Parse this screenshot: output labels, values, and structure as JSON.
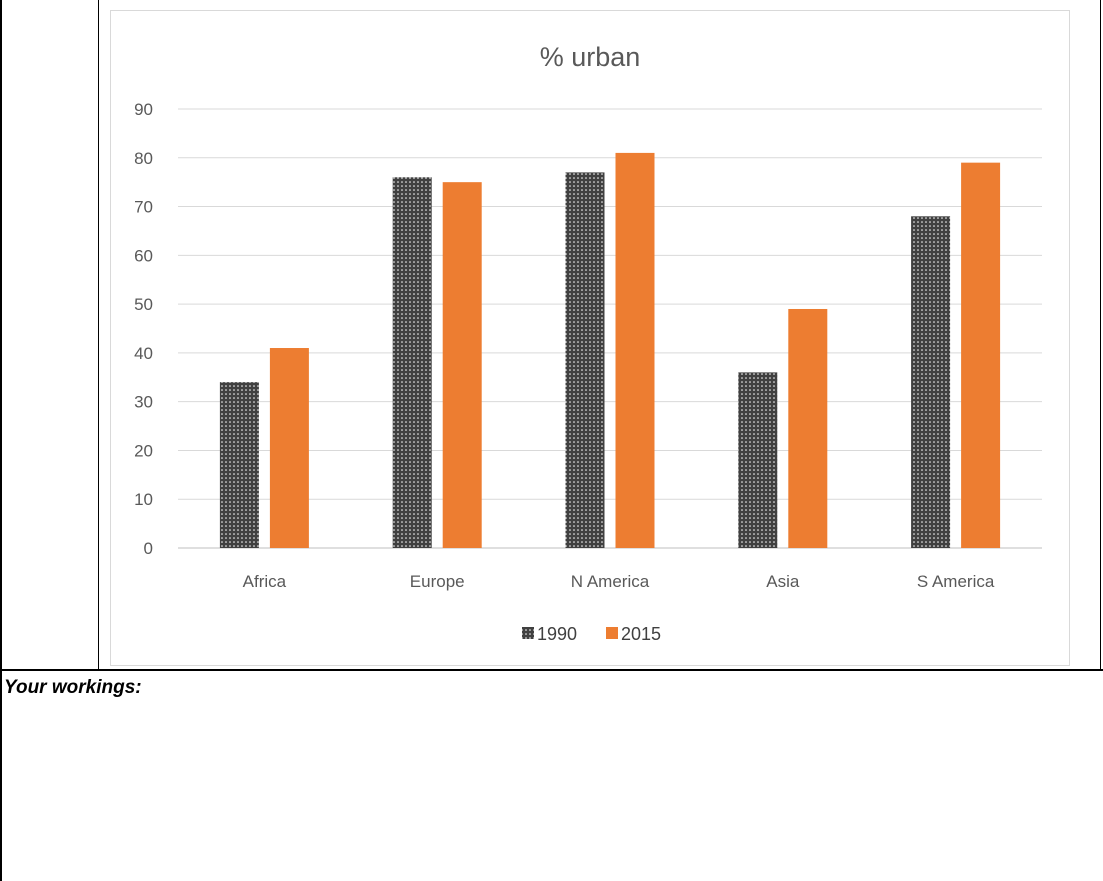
{
  "worksheet": {
    "workings_label": "Your workings:"
  },
  "chart_data": {
    "type": "bar",
    "title": "% urban",
    "xlabel": "",
    "ylabel": "",
    "categories": [
      "Africa",
      "Europe",
      "N America",
      "Asia",
      "S America"
    ],
    "series": [
      {
        "name": "1990",
        "values": [
          34,
          76,
          77,
          36,
          68
        ],
        "color": "#404040",
        "pattern": "dotted"
      },
      {
        "name": "2015",
        "values": [
          41,
          75,
          81,
          49,
          79
        ],
        "color": "#ED7D31",
        "pattern": "solid"
      }
    ],
    "ylim": [
      0,
      90
    ],
    "yticks": [
      0,
      10,
      20,
      30,
      40,
      50,
      60,
      70,
      80,
      90
    ],
    "grid": true,
    "legend": "bottom"
  }
}
